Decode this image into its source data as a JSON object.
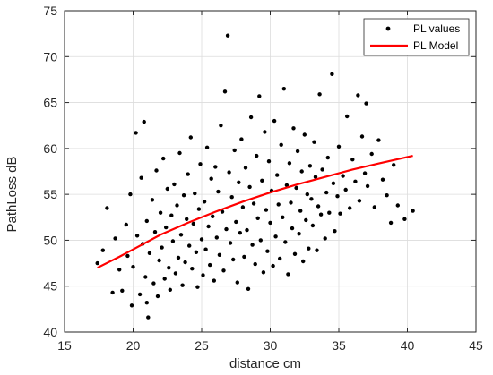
{
  "chart_data": {
    "type": "scatter",
    "xlabel": "distance cm",
    "ylabel": "PathLoss dB",
    "xlim": [
      15,
      45
    ],
    "ylim": [
      40,
      75
    ],
    "xticks": [
      15,
      20,
      25,
      30,
      35,
      40,
      45
    ],
    "yticks": [
      40,
      45,
      50,
      55,
      60,
      65,
      70,
      75
    ],
    "grid": true,
    "legend_position": "top-right",
    "colors": {
      "points": "#000000",
      "model": "#ff0000",
      "grid": "#dcdcdc",
      "axes": "#262626"
    },
    "series": [
      {
        "name": "PL values",
        "kind": "points",
        "points": [
          [
            17.4,
            47.5
          ],
          [
            17.8,
            48.9
          ],
          [
            18.1,
            53.5
          ],
          [
            18.5,
            44.3
          ],
          [
            18.7,
            50.2
          ],
          [
            19.0,
            46.8
          ],
          [
            19.2,
            44.5
          ],
          [
            19.5,
            51.7
          ],
          [
            19.6,
            48.3
          ],
          [
            19.8,
            55.0
          ],
          [
            19.9,
            42.9
          ],
          [
            20.0,
            47.1
          ],
          [
            20.2,
            61.7
          ],
          [
            20.3,
            50.5
          ],
          [
            20.5,
            44.1
          ],
          [
            20.6,
            56.8
          ],
          [
            20.7,
            49.6
          ],
          [
            20.8,
            62.9
          ],
          [
            20.9,
            46.0
          ],
          [
            21.0,
            43.2
          ],
          [
            21.0,
            52.1
          ],
          [
            21.1,
            41.6
          ],
          [
            21.2,
            48.6
          ],
          [
            21.4,
            54.4
          ],
          [
            21.5,
            45.3
          ],
          [
            21.6,
            50.9
          ],
          [
            21.7,
            57.6
          ],
          [
            21.8,
            43.9
          ],
          [
            21.9,
            47.8
          ],
          [
            22.0,
            53.0
          ],
          [
            22.1,
            49.2
          ],
          [
            22.2,
            58.9
          ],
          [
            22.3,
            45.8
          ],
          [
            22.4,
            51.4
          ],
          [
            22.5,
            55.6
          ],
          [
            22.6,
            47.0
          ],
          [
            22.7,
            44.6
          ],
          [
            22.8,
            52.7
          ],
          [
            22.9,
            49.9
          ],
          [
            23.0,
            56.1
          ],
          [
            23.1,
            46.4
          ],
          [
            23.2,
            53.8
          ],
          [
            23.3,
            48.1
          ],
          [
            23.4,
            59.5
          ],
          [
            23.5,
            50.6
          ],
          [
            23.6,
            45.1
          ],
          [
            23.7,
            54.9
          ],
          [
            23.8,
            47.6
          ],
          [
            23.9,
            52.3
          ],
          [
            24.0,
            57.2
          ],
          [
            24.1,
            49.4
          ],
          [
            24.2,
            61.2
          ],
          [
            24.3,
            46.9
          ],
          [
            24.4,
            51.8
          ],
          [
            24.5,
            55.1
          ],
          [
            24.6,
            48.7
          ],
          [
            24.7,
            44.9
          ],
          [
            24.8,
            53.4
          ],
          [
            24.9,
            58.3
          ],
          [
            25.0,
            50.1
          ],
          [
            25.1,
            46.2
          ],
          [
            25.2,
            54.2
          ],
          [
            25.3,
            49.0
          ],
          [
            25.4,
            60.1
          ],
          [
            25.5,
            51.5
          ],
          [
            25.6,
            47.3
          ],
          [
            25.7,
            56.7
          ],
          [
            25.8,
            52.6
          ],
          [
            25.9,
            45.6
          ],
          [
            26.0,
            58.0
          ],
          [
            26.1,
            50.3
          ],
          [
            26.2,
            55.3
          ],
          [
            26.3,
            48.4
          ],
          [
            26.4,
            62.5
          ],
          [
            26.5,
            53.1
          ],
          [
            26.6,
            46.7
          ],
          [
            26.7,
            66.2
          ],
          [
            26.8,
            51.2
          ],
          [
            26.9,
            72.3
          ],
          [
            27.0,
            57.4
          ],
          [
            27.1,
            49.7
          ],
          [
            27.2,
            54.7
          ],
          [
            27.3,
            47.9
          ],
          [
            27.4,
            59.8
          ],
          [
            27.5,
            52.0
          ],
          [
            27.6,
            45.4
          ],
          [
            27.7,
            56.3
          ],
          [
            27.8,
            50.8
          ],
          [
            27.9,
            61.0
          ],
          [
            28.0,
            53.6
          ],
          [
            28.1,
            48.2
          ],
          [
            28.2,
            57.9
          ],
          [
            28.3,
            51.1
          ],
          [
            28.4,
            44.7
          ],
          [
            28.5,
            55.8
          ],
          [
            28.6,
            63.4
          ],
          [
            28.7,
            49.5
          ],
          [
            28.8,
            54.0
          ],
          [
            28.9,
            47.4
          ],
          [
            29.0,
            59.2
          ],
          [
            29.1,
            52.4
          ],
          [
            29.2,
            65.7
          ],
          [
            29.3,
            50.0
          ],
          [
            29.4,
            56.5
          ],
          [
            29.5,
            46.5
          ],
          [
            29.6,
            61.8
          ],
          [
            29.7,
            53.3
          ],
          [
            29.8,
            48.8
          ],
          [
            29.9,
            58.6
          ],
          [
            30.0,
            51.9
          ],
          [
            30.1,
            55.4
          ],
          [
            30.2,
            47.2
          ],
          [
            30.3,
            63.0
          ],
          [
            30.4,
            50.4
          ],
          [
            30.5,
            57.1
          ],
          [
            30.6,
            53.9
          ],
          [
            30.7,
            48.0
          ],
          [
            30.8,
            60.4
          ],
          [
            30.9,
            52.5
          ],
          [
            31.0,
            66.5
          ],
          [
            31.1,
            49.8
          ],
          [
            31.2,
            56.0
          ],
          [
            31.3,
            46.3
          ],
          [
            31.4,
            58.4
          ],
          [
            31.5,
            54.1
          ],
          [
            31.6,
            51.3
          ],
          [
            31.7,
            62.2
          ],
          [
            31.8,
            48.5
          ],
          [
            31.9,
            55.7
          ],
          [
            32.0,
            59.7
          ],
          [
            32.1,
            50.7
          ],
          [
            32.2,
            53.2
          ],
          [
            32.3,
            57.5
          ],
          [
            32.4,
            47.7
          ],
          [
            32.5,
            61.5
          ],
          [
            32.6,
            52.2
          ],
          [
            32.7,
            55.0
          ],
          [
            32.8,
            49.1
          ],
          [
            32.9,
            58.1
          ],
          [
            33.0,
            54.5
          ],
          [
            33.1,
            51.6
          ],
          [
            33.2,
            60.7
          ],
          [
            33.3,
            56.9
          ],
          [
            33.4,
            48.9
          ],
          [
            33.5,
            53.7
          ],
          [
            33.6,
            65.9
          ],
          [
            33.7,
            52.8
          ],
          [
            33.8,
            57.7
          ],
          [
            34.0,
            50.2
          ],
          [
            34.1,
            55.2
          ],
          [
            34.2,
            59.0
          ],
          [
            34.3,
            53.0
          ],
          [
            34.5,
            68.1
          ],
          [
            34.6,
            56.2
          ],
          [
            34.7,
            51.0
          ],
          [
            34.9,
            54.8
          ],
          [
            35.0,
            60.2
          ],
          [
            35.1,
            52.9
          ],
          [
            35.3,
            57.0
          ],
          [
            35.5,
            55.5
          ],
          [
            35.6,
            63.5
          ],
          [
            35.8,
            53.5
          ],
          [
            36.0,
            58.8
          ],
          [
            36.2,
            56.4
          ],
          [
            36.4,
            65.8
          ],
          [
            36.5,
            54.3
          ],
          [
            36.7,
            61.3
          ],
          [
            36.9,
            57.3
          ],
          [
            37.0,
            64.9
          ],
          [
            37.1,
            55.9
          ],
          [
            37.4,
            59.4
          ],
          [
            37.6,
            53.6
          ],
          [
            37.9,
            60.9
          ],
          [
            38.2,
            56.6
          ],
          [
            38.5,
            54.9
          ],
          [
            38.8,
            51.9
          ],
          [
            39.0,
            58.2
          ],
          [
            39.3,
            53.8
          ],
          [
            39.8,
            52.3
          ],
          [
            40.4,
            53.2
          ]
        ]
      },
      {
        "name": "PL Model",
        "kind": "line",
        "x": [
          17.4,
          19.0,
          20.0,
          22.0,
          24.0,
          26.0,
          28.0,
          30.0,
          32.0,
          34.0,
          36.0,
          38.0,
          40.4
        ],
        "y": [
          47.0,
          48.2,
          49.0,
          50.6,
          51.9,
          53.1,
          54.2,
          55.2,
          56.1,
          56.9,
          57.7,
          58.4,
          59.2
        ]
      }
    ]
  }
}
